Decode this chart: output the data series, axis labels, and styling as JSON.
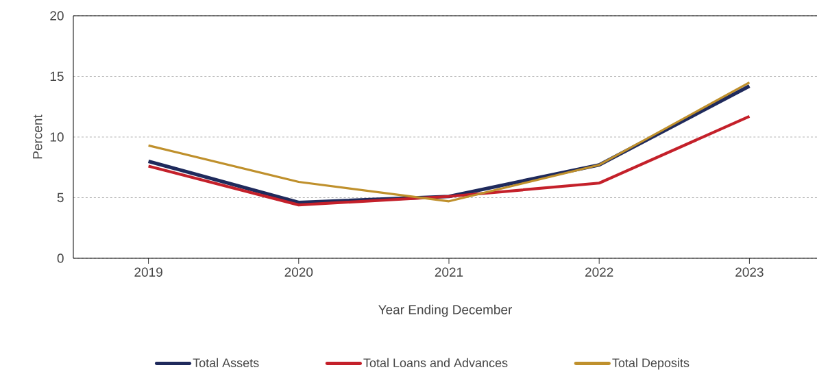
{
  "chart_data": {
    "type": "line",
    "xlabel": "Year Ending December",
    "ylabel": "Percent",
    "categories": [
      "2019",
      "2020",
      "2021",
      "2022",
      "2023"
    ],
    "series": [
      {
        "name": "Total Assets",
        "color": "#1f2a5c",
        "values": [
          8.0,
          4.6,
          5.1,
          7.7,
          14.2
        ]
      },
      {
        "name": "Total Loans and Advances",
        "color": "#c4202a",
        "values": [
          7.6,
          4.4,
          5.1,
          6.2,
          11.7
        ]
      },
      {
        "name": "Total Deposits",
        "color": "#bf902c",
        "values": [
          9.3,
          6.3,
          4.7,
          7.7,
          14.5
        ]
      }
    ],
    "ylim": [
      0,
      20
    ],
    "yticks": [
      0,
      5,
      10,
      15,
      20
    ],
    "grid": "y",
    "legend": "bottom",
    "marker": "none",
    "line_style": "solid"
  }
}
